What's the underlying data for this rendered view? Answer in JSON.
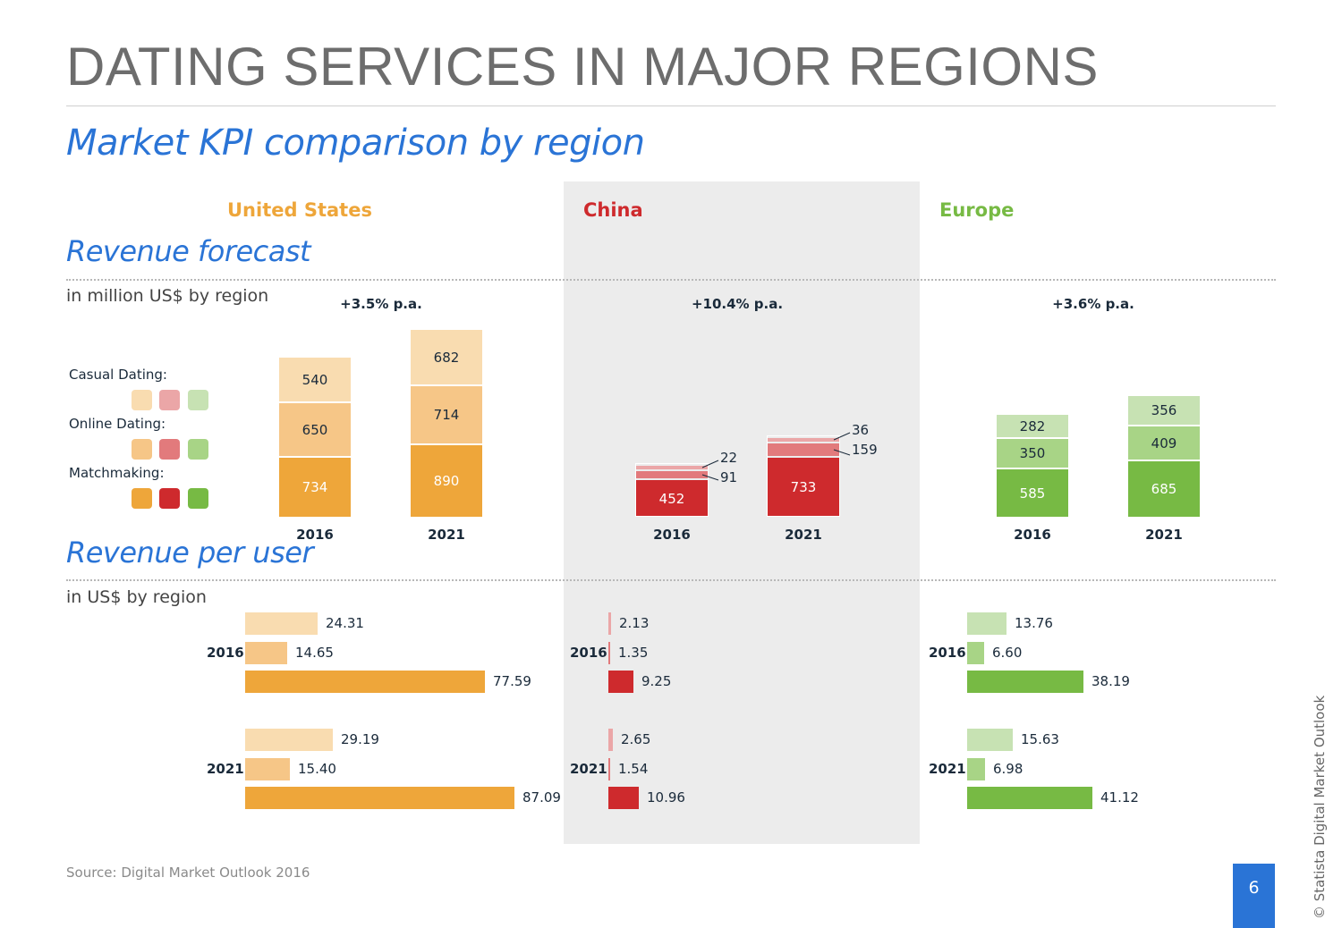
{
  "header": {
    "title": "DATING SERVICES IN MAJOR REGIONS",
    "subtitle": "Market KPI comparison by region"
  },
  "colors": {
    "title_gray": "#6d6d6d",
    "accent_blue": "#2a74d6",
    "us": [
      "#f9dcb0",
      "#f6c687",
      "#eea63a"
    ],
    "china": [
      "#eba6a7",
      "#e27a7c",
      "#ce2a2d"
    ],
    "europe": [
      "#c7e2b3",
      "#a8d486",
      "#77ba44"
    ],
    "us_title": "#eea63a",
    "china_title": "#ce2a2d",
    "europe_title": "#77ba44"
  },
  "sections": {
    "revenue_forecast": {
      "title": "Revenue forecast",
      "unit": "in million US$ by region"
    },
    "revenue_per_user": {
      "title": "Revenue per user",
      "unit": "in US$ by region"
    }
  },
  "legend": {
    "items": [
      {
        "label": "Casual Dating:"
      },
      {
        "label": "Online Dating:"
      },
      {
        "label": "Matchmaking:"
      }
    ]
  },
  "chart_data": [
    {
      "type": "bar",
      "stacked": true,
      "title": "Revenue forecast",
      "ylabel": "in million US$ by region",
      "categories": [
        "2016",
        "2021"
      ],
      "regions": [
        {
          "name": "United States",
          "growth": "+3.5% p.a.",
          "series": [
            {
              "name": "Matchmaking",
              "values": [
                734,
                890
              ]
            },
            {
              "name": "Online Dating",
              "values": [
                650,
                714
              ]
            },
            {
              "name": "Casual Dating",
              "values": [
                540,
                682
              ]
            }
          ]
        },
        {
          "name": "China",
          "growth": "+10.4% p.a.",
          "series": [
            {
              "name": "Matchmaking",
              "values": [
                452,
                733
              ]
            },
            {
              "name": "Online Dating",
              "values": [
                91,
                159
              ]
            },
            {
              "name": "Casual Dating",
              "values": [
                22,
                36
              ]
            }
          ]
        },
        {
          "name": "Europe",
          "growth": "+3.6% p.a.",
          "series": [
            {
              "name": "Matchmaking",
              "values": [
                585,
                685
              ]
            },
            {
              "name": "Online Dating",
              "values": [
                350,
                409
              ]
            },
            {
              "name": "Casual Dating",
              "values": [
                282,
                356
              ]
            }
          ]
        }
      ]
    },
    {
      "type": "bar",
      "orientation": "horizontal",
      "title": "Revenue per user",
      "xlabel": "in US$ by region",
      "categories": [
        "2016",
        "2021"
      ],
      "regions": [
        {
          "name": "United States",
          "series": [
            {
              "name": "Casual Dating",
              "values": [
                "24.31",
                "29.19"
              ]
            },
            {
              "name": "Online Dating",
              "values": [
                "14.65",
                "15.40"
              ]
            },
            {
              "name": "Matchmaking",
              "values": [
                "77.59",
                "87.09"
              ]
            }
          ]
        },
        {
          "name": "China",
          "series": [
            {
              "name": "Casual Dating",
              "values": [
                "2.13",
                "2.65"
              ]
            },
            {
              "name": "Online Dating",
              "values": [
                "1.35",
                "1.54"
              ]
            },
            {
              "name": "Matchmaking",
              "values": [
                "9.25",
                "10.96"
              ]
            }
          ]
        },
        {
          "name": "Europe",
          "series": [
            {
              "name": "Casual Dating",
              "values": [
                "13.76",
                "15.63"
              ]
            },
            {
              "name": "Online Dating",
              "values": [
                "6.60",
                "6.98"
              ]
            },
            {
              "name": "Matchmaking",
              "values": [
                "38.19",
                "41.12"
              ]
            }
          ]
        }
      ]
    }
  ],
  "footer": {
    "source": "Source: Digital Market Outlook 2016",
    "page_number": "6",
    "copyright": "© Statista Digital Market Outlook"
  }
}
